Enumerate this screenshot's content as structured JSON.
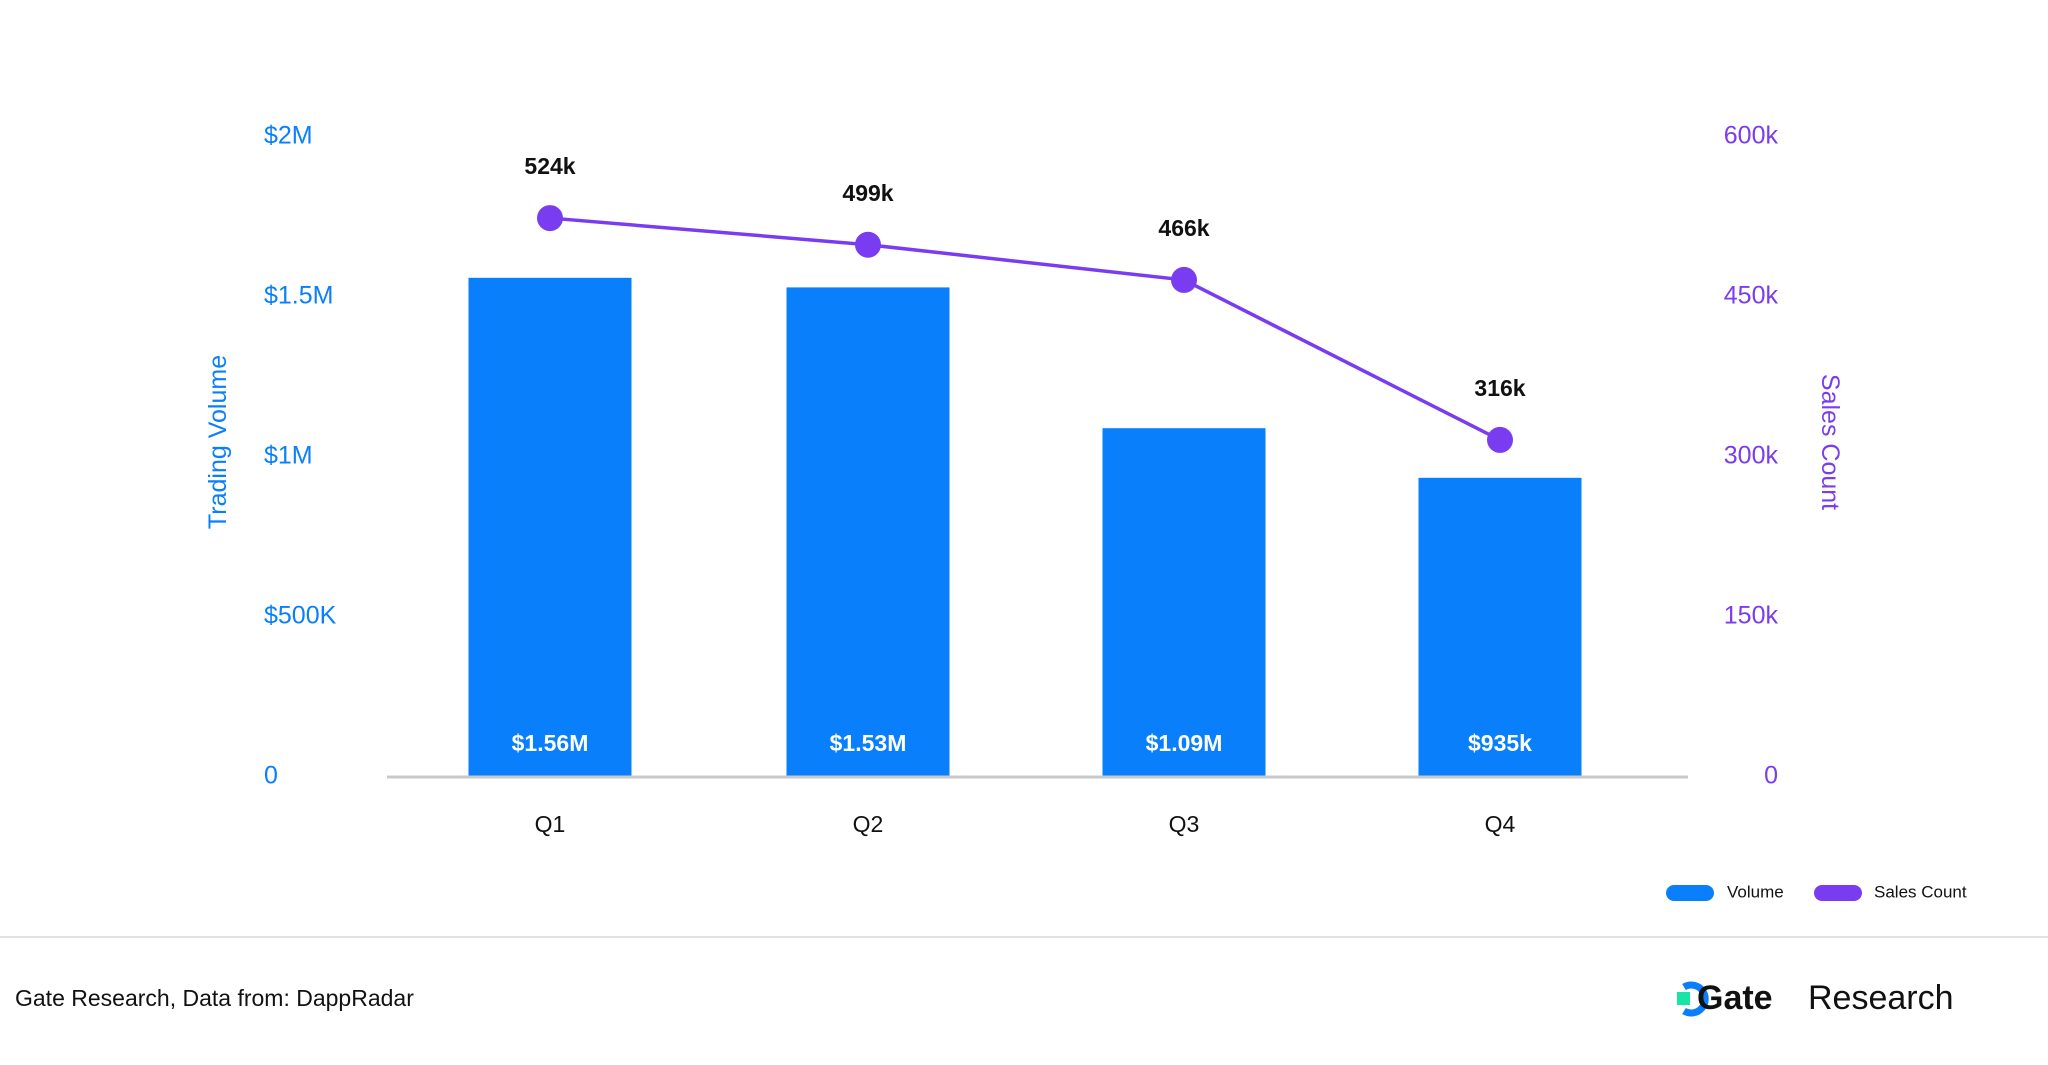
{
  "chart_data": {
    "type": "bar",
    "categories": [
      "Q1",
      "Q2",
      "Q3",
      "Q4"
    ],
    "series": [
      {
        "name": "Volume",
        "type": "bar",
        "axis": "left",
        "values": [
          1560000,
          1530000,
          1090000,
          935000
        ],
        "labels": [
          "$1.56M",
          "$1.53M",
          "$1.09M",
          "$935k"
        ]
      },
      {
        "name": "Sales Count",
        "type": "line",
        "axis": "right",
        "values": [
          524000,
          499000,
          466000,
          316000
        ],
        "labels": [
          "524k",
          "499k",
          "466k",
          "316k"
        ]
      }
    ],
    "y_left": {
      "label": "Trading Volume",
      "range": [
        0,
        2000000
      ],
      "ticks": [
        0,
        500000,
        1000000,
        1500000,
        2000000
      ],
      "tick_labels": [
        "0",
        "$500K",
        "$1M",
        "$1.5M",
        "$2M"
      ]
    },
    "y_right": {
      "label": "Sales Count",
      "range": [
        0,
        600000
      ],
      "ticks": [
        0,
        150000,
        300000,
        450000,
        600000
      ],
      "tick_labels": [
        "0",
        "150k",
        "300k",
        "450k",
        "600k"
      ]
    },
    "grid": false,
    "legend_position": "bottom-right"
  },
  "colors": {
    "volume": "#0a7ffb",
    "sales_count": "#7a3cf0",
    "axis_line": "#c8c8c8",
    "divider": "#e2e2e2",
    "text": "#111111",
    "bar_label": "#ffffff",
    "brand_accent": "#17e5a5"
  },
  "footer": {
    "source": "Gate Research, Data from: DappRadar",
    "brand_primary": "Gate",
    "brand_secondary": "Research",
    "logo_icon": "gate-logo-icon"
  }
}
